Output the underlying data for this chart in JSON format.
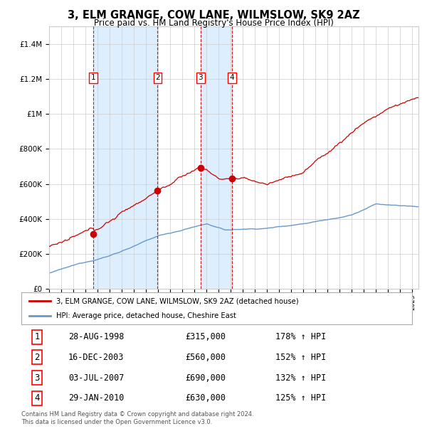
{
  "title": "3, ELM GRANGE, COW LANE, WILMSLOW, SK9 2AZ",
  "subtitle": "Price paid vs. HM Land Registry's House Price Index (HPI)",
  "footer1": "Contains HM Land Registry data © Crown copyright and database right 2024.",
  "footer2": "This data is licensed under the Open Government Licence v3.0.",
  "legend_property": "3, ELM GRANGE, COW LANE, WILMSLOW, SK9 2AZ (detached house)",
  "legend_hpi": "HPI: Average price, detached house, Cheshire East",
  "transactions": [
    {
      "num": 1,
      "date": "28-AUG-1998",
      "price": 315000,
      "hpi_pct": "178% ↑ HPI",
      "year": 1998.65
    },
    {
      "num": 2,
      "date": "16-DEC-2003",
      "price": 560000,
      "hpi_pct": "152% ↑ HPI",
      "year": 2003.96
    },
    {
      "num": 3,
      "date": "03-JUL-2007",
      "price": 690000,
      "hpi_pct": "132% ↑ HPI",
      "year": 2007.5
    },
    {
      "num": 4,
      "date": "29-JAN-2010",
      "price": 630000,
      "hpi_pct": "125% ↑ HPI",
      "year": 2010.08
    }
  ],
  "ylim": [
    0,
    1500000
  ],
  "xlim_start": 1995.0,
  "xlim_end": 2025.5,
  "property_color": "#cc0000",
  "hpi_color": "#6699cc",
  "highlight_color": "#ddeeff",
  "grid_color": "#cccccc",
  "background_color": "#ffffff"
}
